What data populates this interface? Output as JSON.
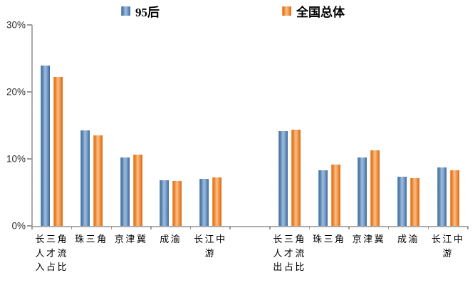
{
  "chart_data": {
    "type": "bar",
    "title": "",
    "xlabel": "",
    "ylabel": "",
    "ylim": [
      0,
      30
    ],
    "grid": false,
    "legend_position": "top-center",
    "axis_color": "#ababab",
    "y_ticks": [
      "0%",
      "10%",
      "20%",
      "30%"
    ],
    "slot_count": 11,
    "categories": [
      "长三角人才流入占比",
      "珠三角",
      "京津冀",
      "成渝",
      "长江中游",
      "",
      "长三角人才流出占比",
      "珠三角",
      "京津冀",
      "成渝",
      "长江中游"
    ],
    "x_label_lines": [
      [
        "长三角",
        "人才流",
        "入占比"
      ],
      [
        "珠三角"
      ],
      [
        "京津冀"
      ],
      [
        "成渝"
      ],
      [
        "长江中",
        "游"
      ],
      [],
      [
        "长三角",
        "人才流",
        "出占比"
      ],
      [
        "珠三角"
      ],
      [
        "京津冀"
      ],
      [
        "成渝"
      ],
      [
        "长江中",
        "游"
      ]
    ],
    "series": [
      {
        "name": "95后",
        "color": "#4f81bd",
        "values": [
          23.9,
          14.3,
          10.2,
          6.8,
          7.0,
          null,
          14.2,
          8.3,
          10.2,
          7.3,
          8.7
        ]
      },
      {
        "name": "全国总体",
        "color": "#ed7d31",
        "values": [
          22.2,
          13.5,
          10.6,
          6.7,
          7.2,
          null,
          14.4,
          9.1,
          11.3,
          7.1,
          8.3
        ]
      }
    ]
  }
}
